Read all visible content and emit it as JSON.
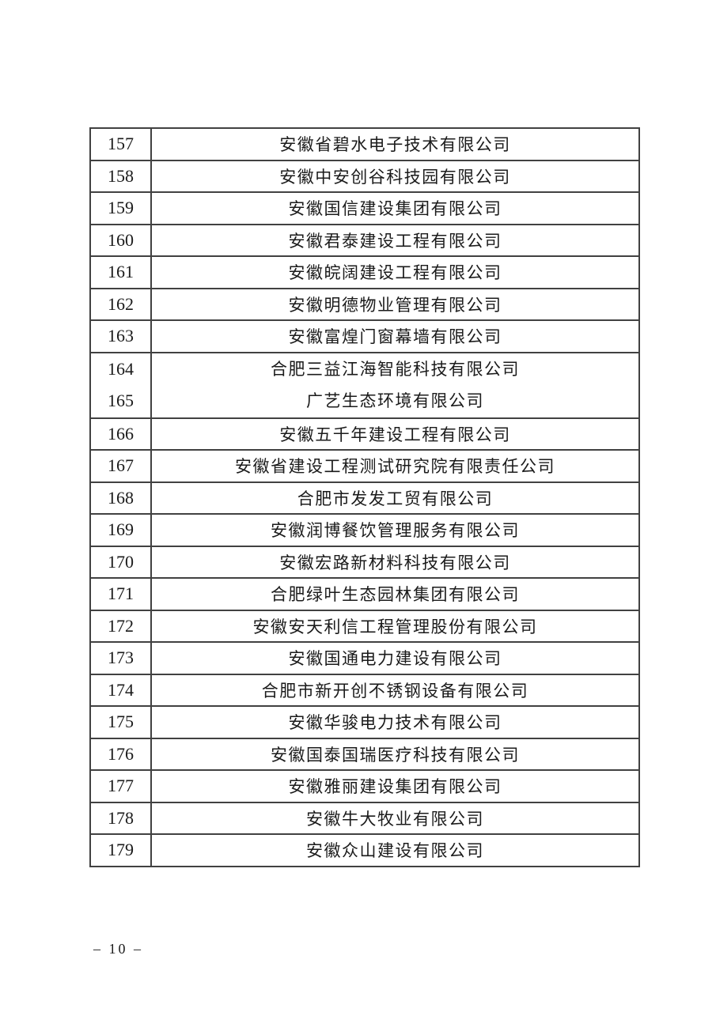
{
  "table": {
    "rows": [
      {
        "no": "157",
        "name": "安徽省碧水电子技术有限公司"
      },
      {
        "no": "158",
        "name": "安徽中安创谷科技园有限公司"
      },
      {
        "no": "159",
        "name": "安徽国信建设集团有限公司"
      },
      {
        "no": "160",
        "name": "安徽君泰建设工程有限公司"
      },
      {
        "no": "161",
        "name": "安徽皖阔建设工程有限公司"
      },
      {
        "no": "162",
        "name": "安徽明德物业管理有限公司"
      },
      {
        "no": "163",
        "name": "安徽富煌门窗幕墙有限公司"
      },
      {
        "no": "164",
        "name": "合肥三益江海智能科技有限公司"
      },
      {
        "no": "165",
        "name": "广艺生态环境有限公司"
      },
      {
        "no": "166",
        "name": "安徽五千年建设工程有限公司"
      },
      {
        "no": "167",
        "name": "安徽省建设工程测试研究院有限责任公司"
      },
      {
        "no": "168",
        "name": "合肥市发发工贸有限公司"
      },
      {
        "no": "169",
        "name": "安徽润博餐饮管理服务有限公司"
      },
      {
        "no": "170",
        "name": "安徽宏路新材料科技有限公司"
      },
      {
        "no": "171",
        "name": "合肥绿叶生态园林集团有限公司"
      },
      {
        "no": "172",
        "name": "安徽安天利信工程管理股份有限公司"
      },
      {
        "no": "173",
        "name": "安徽国通电力建设有限公司"
      },
      {
        "no": "174",
        "name": "合肥市新开创不锈钢设备有限公司"
      },
      {
        "no": "175",
        "name": "安徽华骏电力技术有限公司"
      },
      {
        "no": "176",
        "name": "安徽国泰国瑞医疗科技有限公司"
      },
      {
        "no": "177",
        "name": "安徽雅丽建设集团有限公司"
      },
      {
        "no": "178",
        "name": "安徽牛大牧业有限公司"
      },
      {
        "no": "179",
        "name": "安徽众山建设有限公司"
      }
    ]
  },
  "footer": {
    "page_label": "– 10 –"
  },
  "colors": {
    "background": "#ffffff",
    "border": "#414141",
    "text": "#1b1b1b"
  }
}
